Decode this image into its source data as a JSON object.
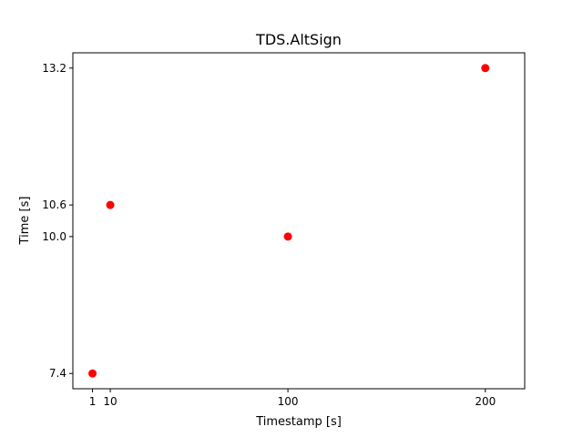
{
  "chart_data": {
    "type": "scatter",
    "title": "TDS.AltSign",
    "xlabel": "Timestamp [s]",
    "ylabel": "Time [s]",
    "xlim": [
      -8.95,
      219.95
    ],
    "ylim": [
      7.11,
      13.49
    ],
    "x_ticks": [
      1,
      10,
      100,
      200
    ],
    "x_tick_labels": [
      "1",
      "10",
      "100",
      "200"
    ],
    "y_ticks": [
      7.4,
      10.0,
      10.6,
      13.2
    ],
    "y_tick_labels": [
      "7.4",
      "10.0",
      "10.6",
      "13.2"
    ],
    "grid": false,
    "legend": "none",
    "points": [
      {
        "x": 1,
        "y": 7.4
      },
      {
        "x": 10,
        "y": 10.6
      },
      {
        "x": 100,
        "y": 10.0
      },
      {
        "x": 200,
        "y": 13.2
      }
    ],
    "marker_color": "#ff0000"
  }
}
